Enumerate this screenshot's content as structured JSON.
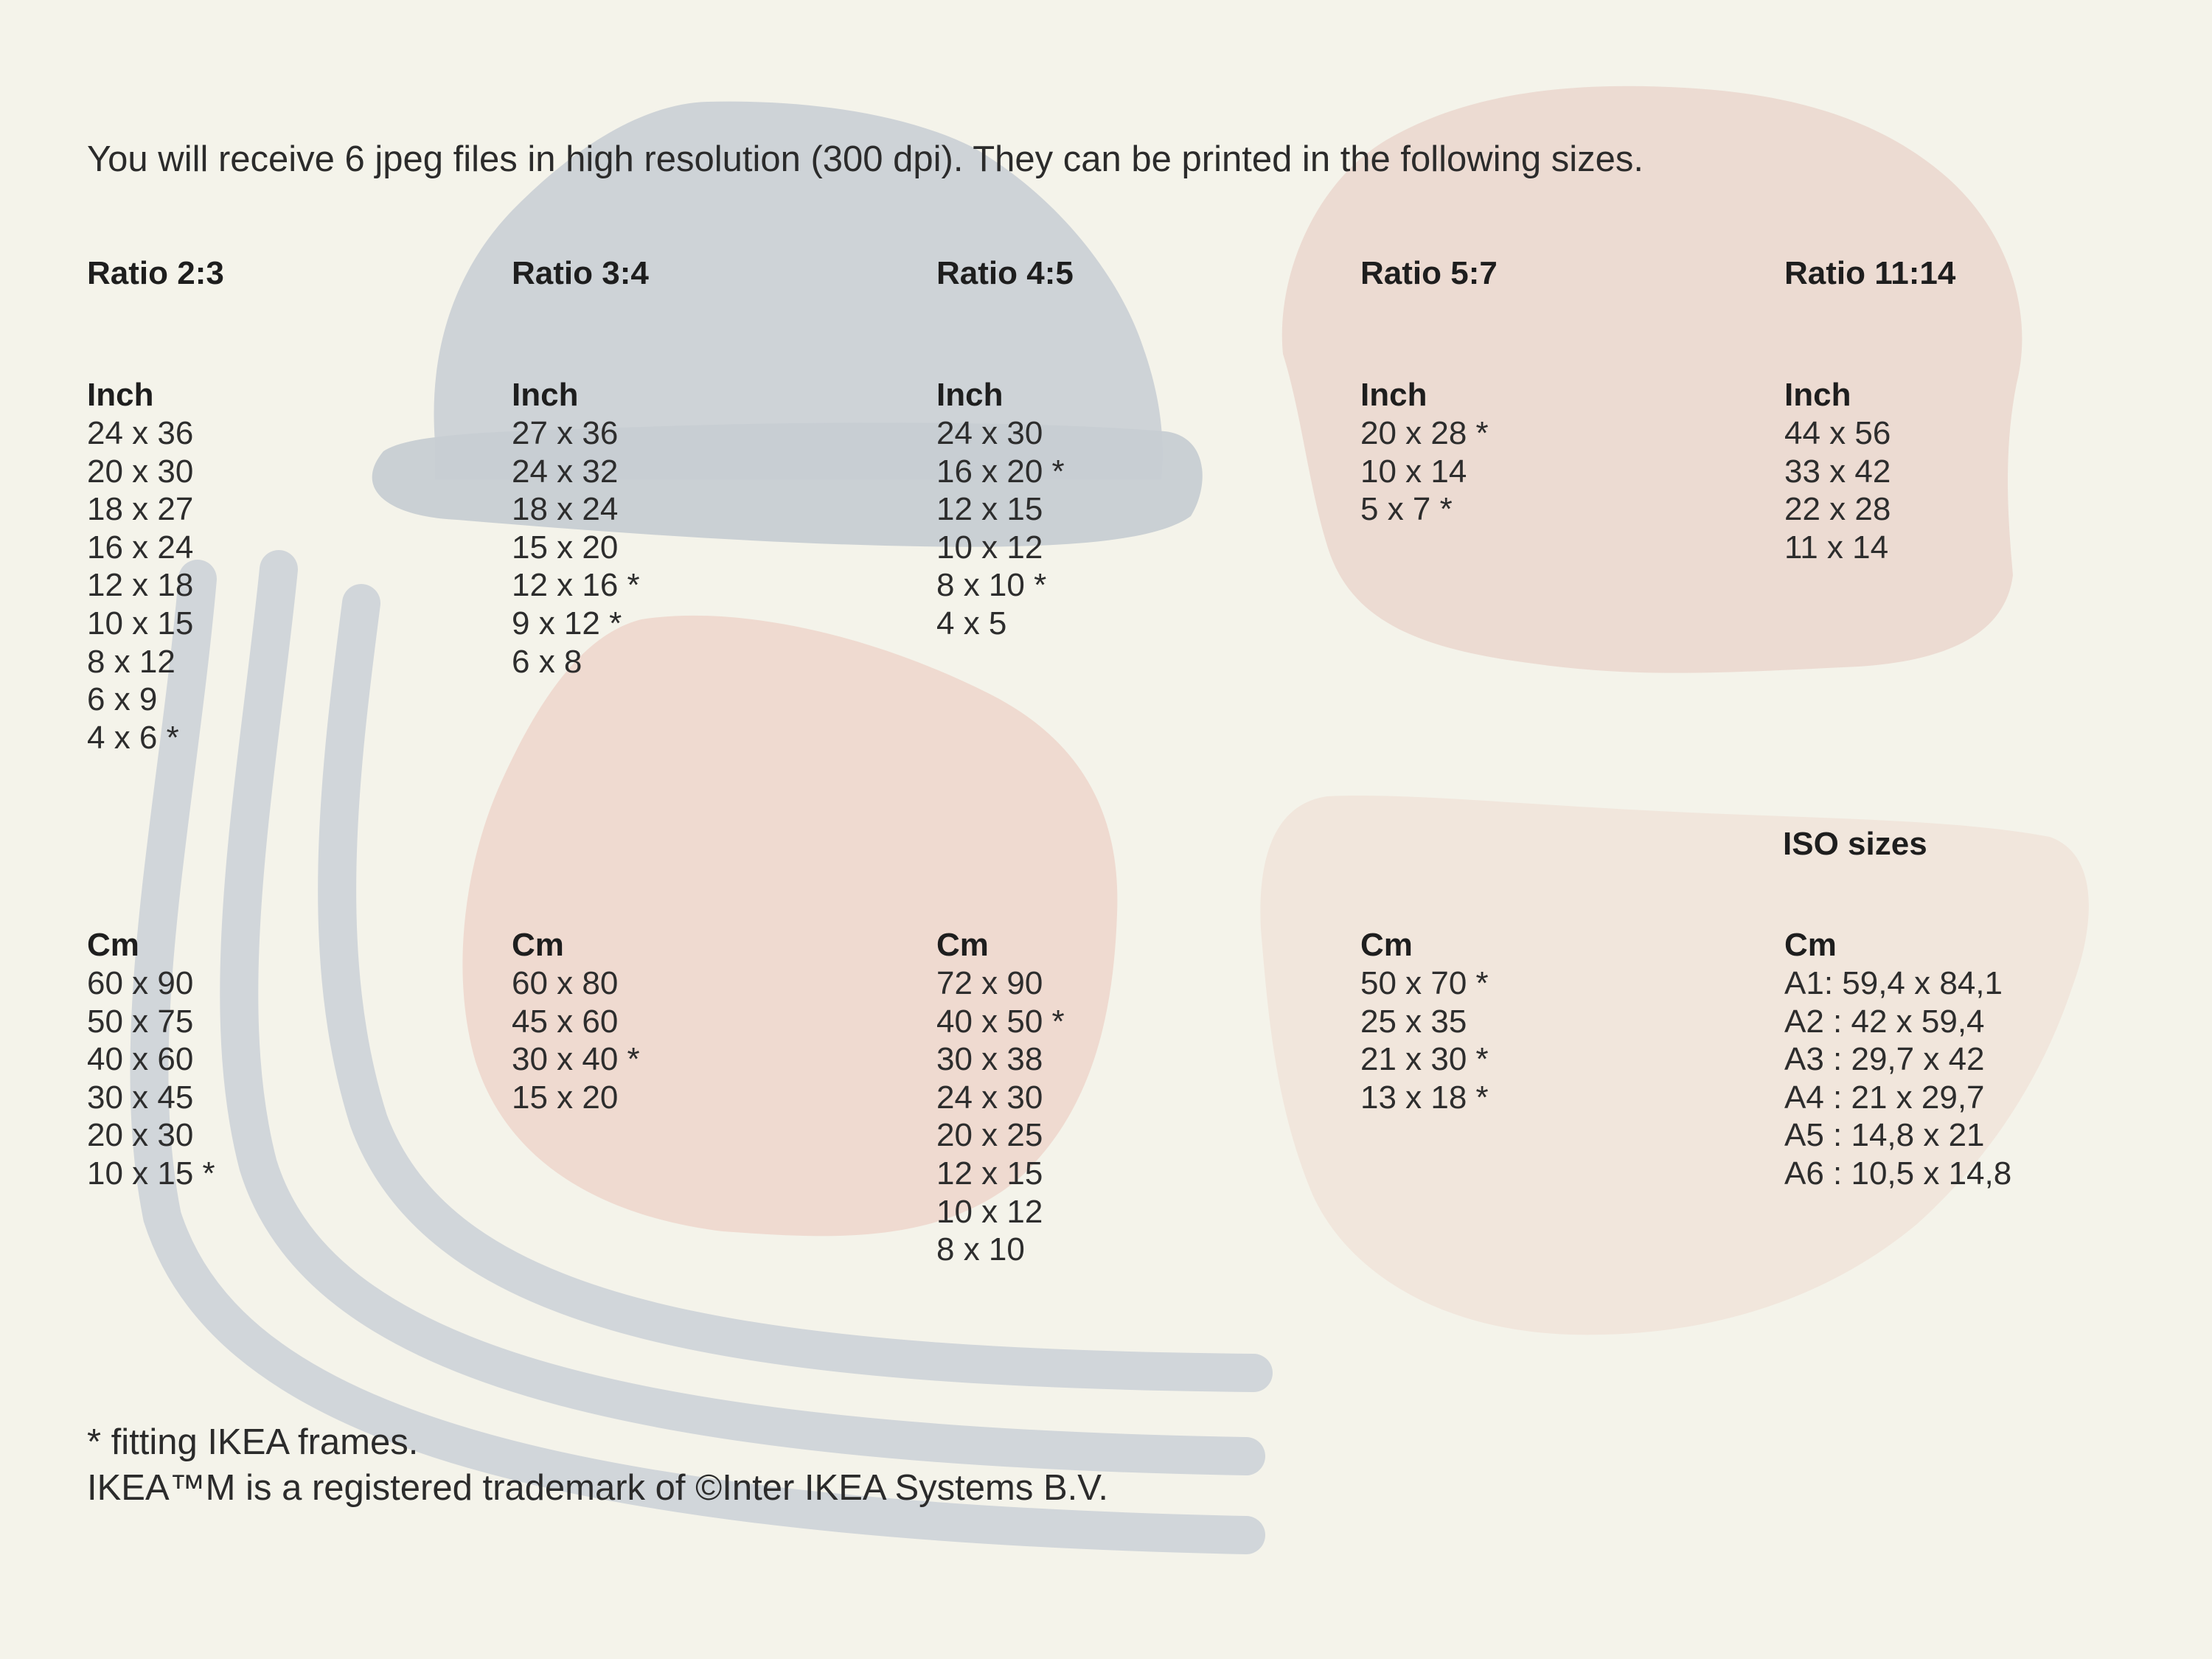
{
  "intro": "You will receive 6 jpeg files in high resolution (300 dpi). They can be printed in the following sizes.",
  "colors": {
    "background": "#f4f3ea",
    "hat_blue": "#cbd1d6",
    "blob_peach": "#efdad0",
    "blob_light_peach": "#f1e6dc",
    "stripe_blue": "#d0d5da"
  },
  "ratios": [
    {
      "label": "Ratio 2:3",
      "inch_label": "Inch",
      "inch": [
        "24 x 36",
        "20 x 30",
        "18 x 27",
        "16 x 24",
        "12 x 18",
        "10 x 15",
        "8 x 12",
        "6 x 9",
        "4 x 6 *"
      ],
      "cm_label": "Cm",
      "cm": [
        "60 x 90",
        "50 x 75",
        "40 x 60",
        "30 x 45",
        "20 x 30",
        "10 x 15 *"
      ]
    },
    {
      "label": "Ratio 3:4",
      "inch_label": "Inch",
      "inch": [
        "27 x 36",
        "24 x 32",
        "18 x 24",
        "15 x 20",
        "12 x 16 *",
        "9 x 12 *",
        "6 x 8"
      ],
      "cm_label": "Cm",
      "cm": [
        "60 x 80",
        "45 x 60",
        "30 x 40 *",
        "15 x 20"
      ]
    },
    {
      "label": "Ratio 4:5",
      "inch_label": "Inch",
      "inch": [
        "24 x 30",
        "16 x 20 *",
        "12 x 15",
        "10 x 12",
        "8 x 10 *",
        "4 x 5"
      ],
      "cm_label": "Cm",
      "cm": [
        "72 x 90",
        "40 x 50 *",
        "30 x 38",
        "24 x 30",
        "20 x 25",
        "12 x 15",
        "10 x 12",
        "8 x 10"
      ]
    },
    {
      "label": "Ratio 5:7",
      "inch_label": "Inch",
      "inch": [
        "20 x 28 *",
        "10 x 14",
        "5 x 7 *"
      ],
      "cm_label": "Cm",
      "cm": [
        "50 x 70 *",
        "25 x 35",
        "21 x 30 *",
        "13 x 18 *"
      ]
    },
    {
      "label": "Ratio 11:14",
      "inch_label": "Inch",
      "inch": [
        "44 x 56",
        "33 x 42",
        "22 x 28",
        "11 x 14"
      ],
      "iso_label": "ISO sizes",
      "cm_label": "Cm",
      "cm": [
        "A1: 59,4 x 84,1",
        "A2 : 42 x 59,4",
        "A3 : 29,7 x 42",
        "A4 : 21 x 29,7",
        "A5 : 14,8 x 21",
        "A6 : 10,5 x 14,8"
      ]
    }
  ],
  "footnote": "* fitting IKEA frames.",
  "trademark": "IKEA™M is a registered trademark of ©Inter IKEA Systems B.V."
}
